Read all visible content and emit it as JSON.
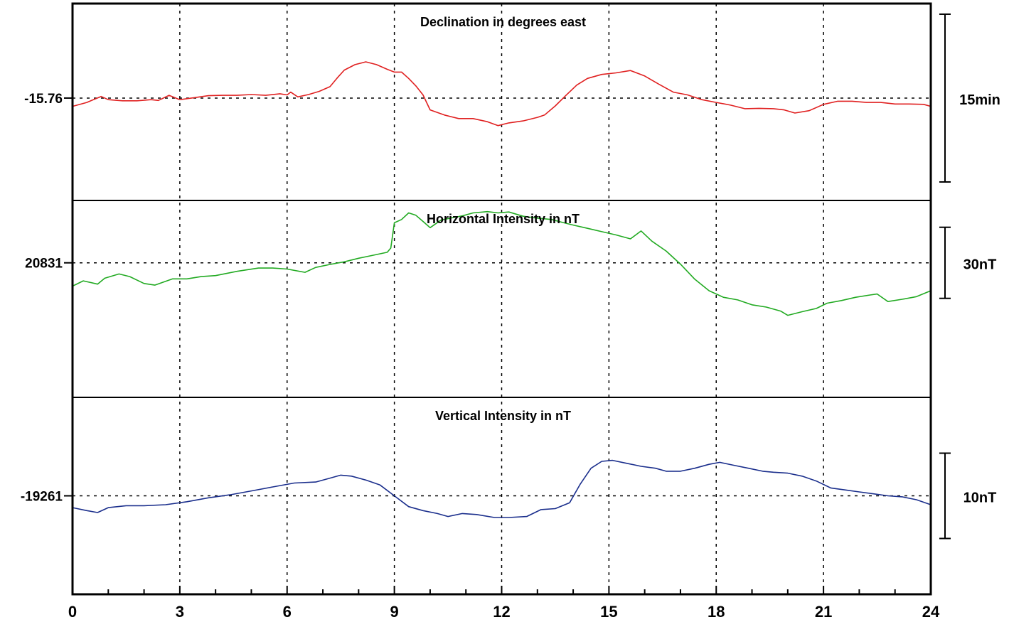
{
  "chart_data": {
    "type": "line",
    "x_ticks": [
      "0",
      "3",
      "6",
      "9",
      "12",
      "15",
      "18",
      "21",
      "24"
    ],
    "xlim": [
      0,
      24
    ],
    "grid": true,
    "panels": [
      {
        "title": "Declination in degrees east",
        "baseline_label": "-15.76",
        "scale_label": "15min",
        "color": "#e02020",
        "ylim": [
          -16.02,
          -15.52
        ],
        "points": [
          [
            0,
            -15.781
          ],
          [
            0.4,
            -15.771
          ],
          [
            0.8,
            -15.756
          ],
          [
            1.0,
            -15.764
          ],
          [
            1.4,
            -15.767
          ],
          [
            1.8,
            -15.767
          ],
          [
            2.2,
            -15.764
          ],
          [
            2.4,
            -15.766
          ],
          [
            2.7,
            -15.753
          ],
          [
            3.0,
            -15.764
          ],
          [
            3.4,
            -15.759
          ],
          [
            3.8,
            -15.754
          ],
          [
            4.2,
            -15.753
          ],
          [
            4.6,
            -15.753
          ],
          [
            5.0,
            -15.751
          ],
          [
            5.4,
            -15.753
          ],
          [
            5.8,
            -15.749
          ],
          [
            6.0,
            -15.752
          ],
          [
            6.1,
            -15.745
          ],
          [
            6.3,
            -15.757
          ],
          [
            6.6,
            -15.751
          ],
          [
            6.9,
            -15.743
          ],
          [
            7.2,
            -15.731
          ],
          [
            7.4,
            -15.709
          ],
          [
            7.6,
            -15.689
          ],
          [
            7.9,
            -15.675
          ],
          [
            8.2,
            -15.668
          ],
          [
            8.5,
            -15.675
          ],
          [
            8.8,
            -15.687
          ],
          [
            9.0,
            -15.694
          ],
          [
            9.2,
            -15.694
          ],
          [
            9.4,
            -15.71
          ],
          [
            9.6,
            -15.729
          ],
          [
            9.8,
            -15.752
          ],
          [
            10.0,
            -15.79
          ],
          [
            10.4,
            -15.803
          ],
          [
            10.8,
            -15.812
          ],
          [
            11.2,
            -15.812
          ],
          [
            11.6,
            -15.82
          ],
          [
            11.9,
            -15.83
          ],
          [
            12.2,
            -15.823
          ],
          [
            12.6,
            -15.818
          ],
          [
            13.0,
            -15.809
          ],
          [
            13.2,
            -15.803
          ],
          [
            13.5,
            -15.78
          ],
          [
            13.8,
            -15.753
          ],
          [
            14.1,
            -15.727
          ],
          [
            14.4,
            -15.71
          ],
          [
            14.8,
            -15.7
          ],
          [
            15.2,
            -15.696
          ],
          [
            15.6,
            -15.69
          ],
          [
            16.0,
            -15.704
          ],
          [
            16.4,
            -15.725
          ],
          [
            16.8,
            -15.745
          ],
          [
            17.2,
            -15.752
          ],
          [
            17.6,
            -15.764
          ],
          [
            18.0,
            -15.771
          ],
          [
            18.4,
            -15.778
          ],
          [
            18.8,
            -15.787
          ],
          [
            19.2,
            -15.786
          ],
          [
            19.6,
            -15.787
          ],
          [
            19.9,
            -15.79
          ],
          [
            20.2,
            -15.798
          ],
          [
            20.6,
            -15.792
          ],
          [
            21.0,
            -15.776
          ],
          [
            21.4,
            -15.768
          ],
          [
            21.8,
            -15.768
          ],
          [
            22.2,
            -15.771
          ],
          [
            22.6,
            -15.771
          ],
          [
            23.0,
            -15.775
          ],
          [
            23.4,
            -15.775
          ],
          [
            23.8,
            -15.776
          ],
          [
            24.0,
            -15.781
          ]
        ]
      },
      {
        "title": "Horizontal Intensity in nT",
        "baseline_label": "20831",
        "scale_label": "30nT",
        "color": "#22aa22",
        "ylim": [
          20790,
          20850
        ],
        "points": [
          [
            0,
            20823.9
          ],
          [
            0.3,
            20825.5
          ],
          [
            0.7,
            20824.5
          ],
          [
            0.9,
            20826.3
          ],
          [
            1.3,
            20827.6
          ],
          [
            1.6,
            20826.8
          ],
          [
            2.0,
            20824.7
          ],
          [
            2.3,
            20824.2
          ],
          [
            2.8,
            20826.1
          ],
          [
            3.2,
            20826.1
          ],
          [
            3.6,
            20826.8
          ],
          [
            4.0,
            20827.1
          ],
          [
            4.6,
            20828.4
          ],
          [
            5.2,
            20829.4
          ],
          [
            5.6,
            20829.4
          ],
          [
            6.0,
            20829.1
          ],
          [
            6.5,
            20828.1
          ],
          [
            6.8,
            20829.6
          ],
          [
            7.2,
            20830.5
          ],
          [
            7.6,
            20831.3
          ],
          [
            8.0,
            20832.4
          ],
          [
            8.4,
            20833.3
          ],
          [
            8.8,
            20834.2
          ],
          [
            8.9,
            20835.5
          ],
          [
            9.0,
            20843.2
          ],
          [
            9.2,
            20844.2
          ],
          [
            9.4,
            20846.2
          ],
          [
            9.6,
            20845.5
          ],
          [
            9.8,
            20843.6
          ],
          [
            10.0,
            20841.7
          ],
          [
            10.3,
            20844.0
          ],
          [
            10.6,
            20844.7
          ],
          [
            10.9,
            20845.3
          ],
          [
            11.2,
            20846.2
          ],
          [
            11.6,
            20846.6
          ],
          [
            11.9,
            20846.2
          ],
          [
            12.2,
            20846.5
          ],
          [
            12.6,
            20845.2
          ],
          [
            13.0,
            20844.6
          ],
          [
            13.4,
            20844.2
          ],
          [
            13.7,
            20843.3
          ],
          [
            14.0,
            20842.5
          ],
          [
            14.4,
            20841.5
          ],
          [
            14.8,
            20840.5
          ],
          [
            15.2,
            20839.5
          ],
          [
            15.6,
            20838.3
          ],
          [
            15.9,
            20840.7
          ],
          [
            16.2,
            20837.6
          ],
          [
            16.6,
            20834.6
          ],
          [
            17.0,
            20830.6
          ],
          [
            17.4,
            20826.0
          ],
          [
            17.8,
            20822.5
          ],
          [
            18.2,
            20820.5
          ],
          [
            18.6,
            20819.7
          ],
          [
            19.0,
            20818.2
          ],
          [
            19.4,
            20817.5
          ],
          [
            19.8,
            20816.3
          ],
          [
            20.0,
            20815.0
          ],
          [
            20.4,
            20816.1
          ],
          [
            20.8,
            20817.1
          ],
          [
            21.1,
            20818.7
          ],
          [
            21.5,
            20819.5
          ],
          [
            21.9,
            20820.5
          ],
          [
            22.3,
            20821.2
          ],
          [
            22.5,
            20821.5
          ],
          [
            22.8,
            20819.2
          ],
          [
            23.2,
            20819.9
          ],
          [
            23.6,
            20820.7
          ],
          [
            24.0,
            20822.5
          ]
        ]
      },
      {
        "title": "Vertical Intensity in nT",
        "baseline_label": "-19261",
        "scale_label": "10nT",
        "color": "#1a2e8c",
        "ylim": [
          -19271.0,
          -19251.0
        ],
        "points": [
          [
            0,
            -19262.2
          ],
          [
            0.4,
            -19262.5
          ],
          [
            0.7,
            -19262.7
          ],
          [
            1.0,
            -19262.2
          ],
          [
            1.5,
            -19262.0
          ],
          [
            2.0,
            -19262.0
          ],
          [
            2.6,
            -19261.9
          ],
          [
            3.2,
            -19261.6
          ],
          [
            3.8,
            -19261.2
          ],
          [
            4.4,
            -19260.9
          ],
          [
            5.0,
            -19260.5
          ],
          [
            5.6,
            -19260.1
          ],
          [
            6.2,
            -19259.7
          ],
          [
            6.8,
            -19259.6
          ],
          [
            7.2,
            -19259.2
          ],
          [
            7.5,
            -19258.9
          ],
          [
            7.8,
            -19259.0
          ],
          [
            8.2,
            -19259.4
          ],
          [
            8.6,
            -19259.9
          ],
          [
            9.0,
            -19261.0
          ],
          [
            9.4,
            -19262.1
          ],
          [
            9.8,
            -19262.5
          ],
          [
            10.2,
            -19262.8
          ],
          [
            10.5,
            -19263.1
          ],
          [
            10.9,
            -19262.8
          ],
          [
            11.3,
            -19262.9
          ],
          [
            11.8,
            -19263.2
          ],
          [
            12.2,
            -19263.2
          ],
          [
            12.7,
            -19263.1
          ],
          [
            13.1,
            -19262.4
          ],
          [
            13.5,
            -19262.3
          ],
          [
            13.9,
            -19261.7
          ],
          [
            14.2,
            -19259.8
          ],
          [
            14.5,
            -19258.2
          ],
          [
            14.8,
            -19257.5
          ],
          [
            15.1,
            -19257.4
          ],
          [
            15.5,
            -19257.7
          ],
          [
            15.9,
            -19258.0
          ],
          [
            16.3,
            -19258.2
          ],
          [
            16.6,
            -19258.5
          ],
          [
            17.0,
            -19258.5
          ],
          [
            17.4,
            -19258.2
          ],
          [
            17.8,
            -19257.8
          ],
          [
            18.1,
            -19257.6
          ],
          [
            18.5,
            -19257.9
          ],
          [
            18.9,
            -19258.2
          ],
          [
            19.3,
            -19258.5
          ],
          [
            19.6,
            -19258.6
          ],
          [
            20.0,
            -19258.7
          ],
          [
            20.4,
            -19259.0
          ],
          [
            20.8,
            -19259.5
          ],
          [
            21.2,
            -19260.2
          ],
          [
            21.6,
            -19260.4
          ],
          [
            22.0,
            -19260.6
          ],
          [
            22.4,
            -19260.8
          ],
          [
            22.8,
            -19261.0
          ],
          [
            23.2,
            -19261.1
          ],
          [
            23.6,
            -19261.4
          ],
          [
            24.0,
            -19261.9
          ]
        ]
      }
    ]
  }
}
